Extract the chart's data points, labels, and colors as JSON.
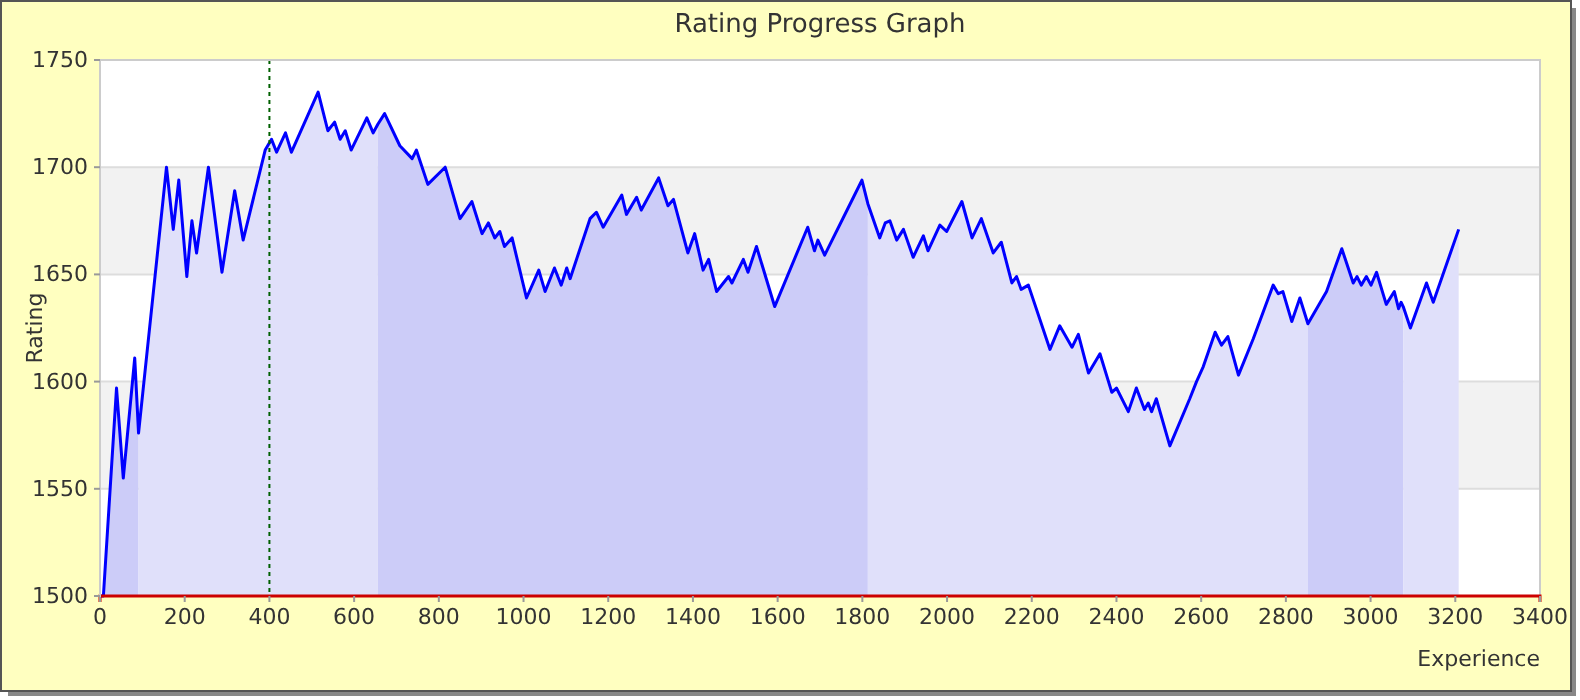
{
  "chart_data": {
    "type": "area",
    "title": "Rating Progress Graph",
    "xlabel": "Experience",
    "ylabel": "Rating",
    "xlim": [
      0,
      3400
    ],
    "xticks": [
      0,
      200,
      400,
      600,
      800,
      1000,
      1200,
      1400,
      1600,
      1800,
      2000,
      2200,
      2400,
      2600,
      2800,
      3000,
      3200,
      3400
    ],
    "ylim": [
      1500,
      1750
    ],
    "yticks": [
      1500,
      1550,
      1600,
      1650,
      1700,
      1750
    ],
    "grid": "y",
    "bands": [
      {
        "axis": "y",
        "from": 1550,
        "to": 1600,
        "color": "#f2f2f2"
      },
      {
        "axis": "y",
        "from": 1650,
        "to": 1700,
        "color": "#f2f2f2"
      }
    ],
    "ref_lines": [
      {
        "axis": "x",
        "value": 400,
        "color": "#006000",
        "line_style": "dotted"
      }
    ],
    "series": [
      {
        "color": "#ccccf8",
        "x": [
          0,
          8,
          39,
          55,
          82,
          91
        ],
        "values": [
          1500,
          1500,
          1597,
          1555,
          1611,
          1576
        ]
      },
      {
        "color": "#e0e0fa",
        "x": [
          91,
          157,
          173,
          186,
          205,
          217,
          228,
          256,
          288,
          318,
          338,
          390,
          405,
          417,
          438,
          452,
          515,
          538,
          554,
          567,
          579,
          593,
          630,
          645,
          656
        ],
        "values": [
          1576,
          1700,
          1671,
          1694,
          1649,
          1675,
          1660,
          1700,
          1651,
          1689,
          1666,
          1708,
          1713,
          1707,
          1716,
          1707,
          1735,
          1717,
          1721,
          1713,
          1717,
          1708,
          1723,
          1716,
          1720
        ]
      },
      {
        "color": "#ccccf8",
        "x": [
          656,
          672,
          708,
          737,
          747,
          774,
          815,
          850,
          878,
          902,
          917,
          932,
          944,
          955,
          973,
          1007,
          1036,
          1051,
          1073,
          1089,
          1102,
          1110,
          1157,
          1172,
          1188,
          1232,
          1243,
          1267,
          1278,
          1319,
          1341,
          1354,
          1388,
          1404,
          1424,
          1437,
          1456,
          1484,
          1492,
          1519,
          1530,
          1550,
          1593,
          1671,
          1687,
          1695,
          1711,
          1779,
          1799,
          1813
        ],
        "values": [
          1720,
          1725,
          1710,
          1704,
          1708,
          1692,
          1700,
          1676,
          1684,
          1669,
          1674,
          1667,
          1670,
          1663,
          1667,
          1639,
          1652,
          1642,
          1653,
          1645,
          1653,
          1648,
          1676,
          1679,
          1672,
          1687,
          1678,
          1686,
          1680,
          1695,
          1682,
          1685,
          1660,
          1669,
          1652,
          1657,
          1642,
          1649,
          1646,
          1657,
          1651,
          1663,
          1635,
          1672,
          1661,
          1666,
          1659,
          1686,
          1694,
          1683
        ]
      },
      {
        "color": "#e0e0fa",
        "x": [
          1813,
          1841,
          1854,
          1865,
          1881,
          1897,
          1920,
          1944,
          1955,
          1983,
          1999,
          2035,
          2059,
          2081,
          2109,
          2128,
          2153,
          2164,
          2175,
          2192,
          2243,
          2266,
          2295,
          2310,
          2334,
          2361,
          2389,
          2400,
          2428,
          2447,
          2466,
          2475,
          2483,
          2494,
          2526,
          2573,
          2589,
          2605,
          2633,
          2648,
          2663,
          2688,
          2723,
          2770,
          2782,
          2793,
          2814,
          2833,
          2852
        ],
        "values": [
          1683,
          1667,
          1674,
          1675,
          1666,
          1671,
          1658,
          1668,
          1661,
          1673,
          1670,
          1684,
          1667,
          1676,
          1660,
          1665,
          1646,
          1649,
          1643,
          1645,
          1615,
          1626,
          1616,
          1622,
          1604,
          1613,
          1595,
          1597,
          1586,
          1597,
          1587,
          1590,
          1586,
          1592,
          1570,
          1592,
          1600,
          1607,
          1623,
          1617,
          1621,
          1603,
          1620,
          1645,
          1641,
          1642,
          1628,
          1639,
          1627
        ]
      },
      {
        "color": "#ccccf8",
        "x": [
          2852,
          2896,
          2932,
          2959,
          2968,
          2978,
          2990,
          3001,
          3014,
          3037,
          3056,
          3066,
          3072,
          3077
        ],
        "values": [
          1627,
          1642,
          1662,
          1646,
          1649,
          1645,
          1649,
          1645,
          1651,
          1636,
          1642,
          1634,
          1637,
          1635
        ]
      },
      {
        "color": "#e0e0fa",
        "x": [
          3077,
          3094,
          3132,
          3148,
          3208
        ],
        "values": [
          1635,
          1625,
          1646,
          1637,
          1671
        ]
      },
      {
        "type": "line",
        "color": "#0000ff",
        "x": [
          0,
          8,
          39,
          55,
          82,
          91,
          157,
          173,
          186,
          205,
          217,
          228,
          256,
          288,
          318,
          338,
          390,
          405,
          417,
          438,
          452,
          515,
          538,
          554,
          567,
          579,
          593,
          630,
          645,
          656,
          672,
          708,
          737,
          747,
          774,
          815,
          850,
          878,
          902,
          917,
          932,
          944,
          955,
          973,
          1007,
          1036,
          1051,
          1073,
          1089,
          1102,
          1110,
          1157,
          1172,
          1188,
          1232,
          1243,
          1267,
          1278,
          1319,
          1341,
          1354,
          1388,
          1404,
          1424,
          1437,
          1456,
          1484,
          1492,
          1519,
          1530,
          1550,
          1593,
          1671,
          1687,
          1695,
          1711,
          1779,
          1799,
          1813,
          1841,
          1854,
          1865,
          1881,
          1897,
          1920,
          1944,
          1955,
          1983,
          1999,
          2035,
          2059,
          2081,
          2109,
          2128,
          2153,
          2164,
          2175,
          2192,
          2243,
          2266,
          2295,
          2310,
          2334,
          2361,
          2389,
          2400,
          2428,
          2447,
          2466,
          2475,
          2483,
          2494,
          2526,
          2573,
          2589,
          2605,
          2633,
          2648,
          2663,
          2688,
          2723,
          2770,
          2782,
          2793,
          2814,
          2833,
          2852,
          2896,
          2932,
          2959,
          2968,
          2978,
          2990,
          3001,
          3014,
          3037,
          3056,
          3066,
          3072,
          3077,
          3094,
          3132,
          3148,
          3208
        ],
        "values": [
          1500,
          1500,
          1597,
          1555,
          1611,
          1576,
          1700,
          1671,
          1694,
          1649,
          1675,
          1660,
          1700,
          1651,
          1689,
          1666,
          1708,
          1713,
          1707,
          1716,
          1707,
          1735,
          1717,
          1721,
          1713,
          1717,
          1708,
          1723,
          1716,
          1720,
          1725,
          1710,
          1704,
          1708,
          1692,
          1700,
          1676,
          1684,
          1669,
          1674,
          1667,
          1670,
          1663,
          1667,
          1639,
          1652,
          1642,
          1653,
          1645,
          1653,
          1648,
          1676,
          1679,
          1672,
          1687,
          1678,
          1686,
          1680,
          1695,
          1682,
          1685,
          1660,
          1669,
          1652,
          1657,
          1642,
          1649,
          1646,
          1657,
          1651,
          1663,
          1635,
          1672,
          1661,
          1666,
          1659,
          1686,
          1694,
          1683,
          1667,
          1674,
          1675,
          1666,
          1671,
          1658,
          1668,
          1661,
          1673,
          1670,
          1684,
          1667,
          1676,
          1660,
          1665,
          1646,
          1649,
          1643,
          1645,
          1615,
          1626,
          1616,
          1622,
          1604,
          1613,
          1595,
          1597,
          1586,
          1597,
          1587,
          1590,
          1586,
          1592,
          1570,
          1592,
          1600,
          1607,
          1623,
          1617,
          1621,
          1603,
          1620,
          1645,
          1641,
          1642,
          1628,
          1639,
          1627,
          1642,
          1662,
          1646,
          1649,
          1645,
          1649,
          1645,
          1651,
          1636,
          1642,
          1634,
          1637,
          1635,
          1625,
          1646,
          1637,
          1671
        ]
      }
    ]
  }
}
